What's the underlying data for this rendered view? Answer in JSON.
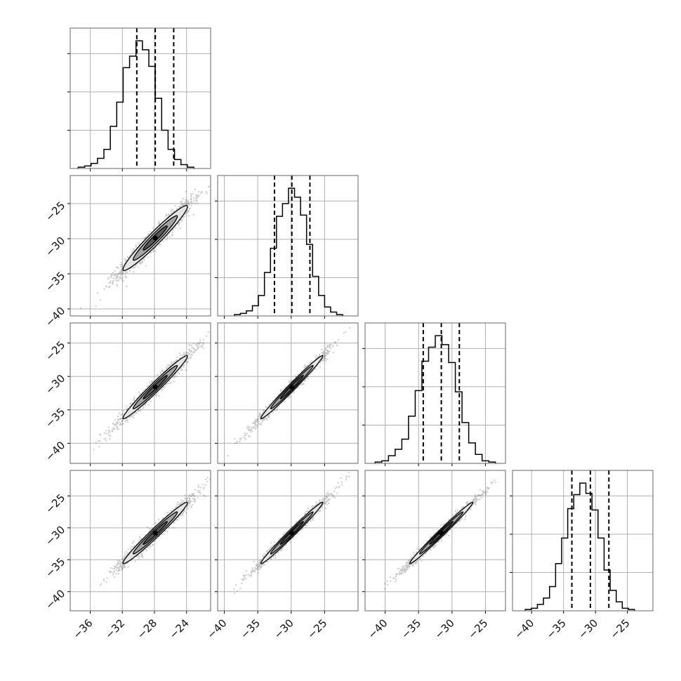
{
  "chart_data": {
    "type": "corner",
    "dimensions": 4,
    "grid": true,
    "colors": {
      "line": "#000000",
      "points": "#333333",
      "grid": "#b0b0b0",
      "frame": "#666666"
    },
    "diag_ranges": [
      [
        -38.5,
        -21.0
      ],
      [
        -41.0,
        -20.0
      ],
      [
        -43.0,
        -22.0
      ],
      [
        -43.0,
        -21.0
      ]
    ],
    "row_ranges": [
      null,
      [
        -41.0,
        -21.0
      ],
      [
        -43.0,
        -22.0
      ],
      [
        -43.0,
        -21.0
      ]
    ],
    "x_ticks": [
      [
        -36,
        -32,
        -28,
        -24
      ],
      [
        -40,
        -35,
        -30,
        -25
      ],
      [
        -40,
        -35,
        -30,
        -25
      ],
      [
        -40,
        -35,
        -30,
        -25
      ]
    ],
    "y_ticks": [
      null,
      [
        -25,
        -30,
        -35,
        -40
      ],
      [
        -25,
        -30,
        -35,
        -40
      ],
      [
        -25,
        -30,
        -35,
        -40
      ]
    ],
    "x_tick_labels": [
      [
        "−36",
        "−32",
        "−28",
        "−24"
      ],
      [
        "−40",
        "−35",
        "−30",
        "−25"
      ],
      [
        "−40",
        "−35",
        "−30",
        "−25"
      ],
      [
        "−40",
        "−35",
        "−30",
        "−25"
      ]
    ],
    "y_tick_labels": [
      null,
      [
        "−25",
        "−30",
        "−35",
        "−40"
      ],
      [
        "−25",
        "−30",
        "−35",
        "−40"
      ],
      [
        "−25",
        "−30",
        "−35",
        "−40"
      ]
    ],
    "diag_quantiles": [
      [
        -30.2,
        -27.9,
        -25.6
      ],
      [
        -32.5,
        -29.9,
        -27.2
      ],
      [
        -34.3,
        -31.6,
        -28.9
      ],
      [
        -33.7,
        -30.8,
        -27.9
      ]
    ],
    "histograms": [
      {
        "bin_start": -37.5,
        "bin_width": 0.8,
        "counts": [
          1,
          2,
          4,
          8,
          15,
          33,
          52,
          79,
          88,
          100,
          93,
          80,
          55,
          30,
          15,
          7,
          3,
          1
        ]
      },
      {
        "bin_start": -38.5,
        "bin_width": 0.9,
        "counts": [
          1,
          2,
          4,
          8,
          16,
          34,
          53,
          78,
          88,
          100,
          93,
          79,
          56,
          31,
          16,
          7,
          3,
          1
        ]
      },
      {
        "bin_start": -41.5,
        "bin_width": 1.0,
        "counts": [
          1,
          2,
          6,
          11,
          19,
          37,
          57,
          80,
          91,
          100,
          93,
          79,
          56,
          32,
          16,
          7,
          2,
          1
        ]
      },
      {
        "bin_start": -41.0,
        "bin_width": 0.95,
        "counts": [
          1,
          2,
          5,
          10,
          19,
          37,
          57,
          80,
          91,
          100,
          92,
          79,
          57,
          32,
          16,
          7,
          2,
          1
        ]
      }
    ],
    "pairs": [
      {
        "row": 1,
        "col": 0,
        "mean": [
          -27.9,
          -29.9
        ],
        "std": [
          2.3,
          2.65
        ],
        "corr": 0.965
      },
      {
        "row": 2,
        "col": 0,
        "mean": [
          -27.9,
          -31.6
        ],
        "std": [
          2.3,
          2.7
        ],
        "corr": 0.98
      },
      {
        "row": 2,
        "col": 1,
        "mean": [
          -29.9,
          -31.6
        ],
        "std": [
          2.65,
          2.7
        ],
        "corr": 0.988
      },
      {
        "row": 3,
        "col": 0,
        "mean": [
          -27.9,
          -30.8
        ],
        "std": [
          2.3,
          2.75
        ],
        "corr": 0.98
      },
      {
        "row": 3,
        "col": 1,
        "mean": [
          -29.9,
          -30.8
        ],
        "std": [
          2.65,
          2.75
        ],
        "corr": 0.988
      },
      {
        "row": 3,
        "col": 2,
        "mean": [
          -31.6,
          -30.8
        ],
        "std": [
          2.7,
          2.75
        ],
        "corr": 0.99
      }
    ]
  }
}
